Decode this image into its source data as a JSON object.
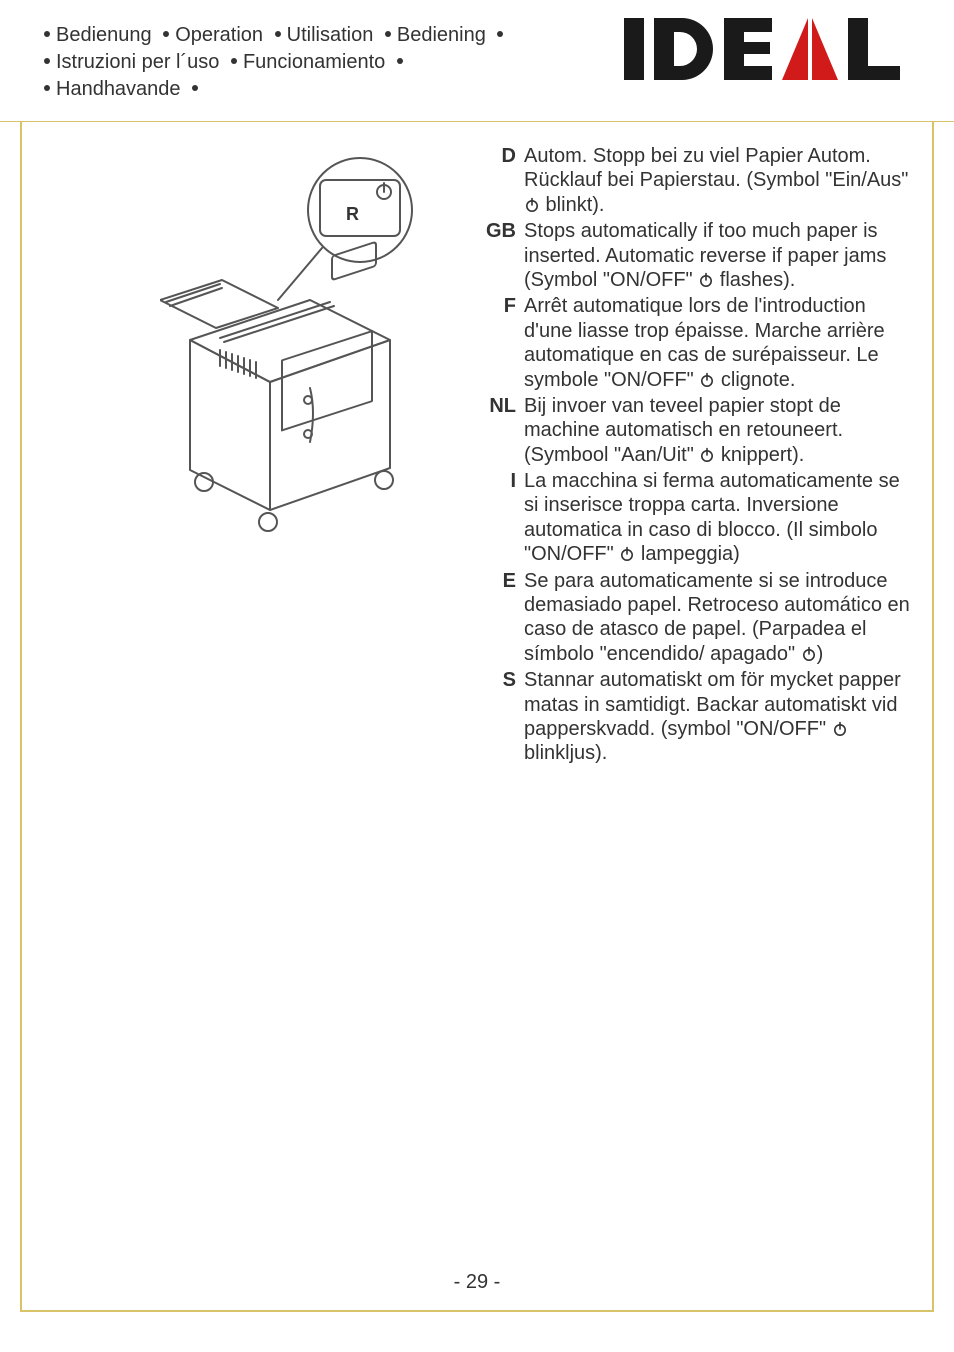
{
  "colors": {
    "text": "#333333",
    "rule": "#d9c36a",
    "logo_black": "#1a1a1a",
    "logo_red": "#d11a1a",
    "background": "#ffffff",
    "illustration_stroke": "#555555"
  },
  "header": {
    "line1_items": [
      "Bedienung",
      "Operation",
      "Utilisation",
      "Bediening"
    ],
    "line2_items": [
      "Istruzioni per l´uso",
      "Funcionamiento"
    ],
    "line3_items": [
      "Handhavande"
    ]
  },
  "logo": {
    "text": "IDEAL",
    "font_weight": 900
  },
  "illustration": {
    "button_label": "R"
  },
  "instructions": [
    {
      "code": "D",
      "text": "Autom. Stopp bei zu viel Papier Autom. Rücklauf bei Papierstau. (Symbol \"Ein/Aus\" ⏻ blinkt)."
    },
    {
      "code": "GB",
      "text": "Stops automatically if too much paper is inserted. Automatic reverse if paper jams (Symbol \"ON/OFF\" ⏻ flashes)."
    },
    {
      "code": "F",
      "text": "Arrêt automatique lors de l'introduction d'une liasse trop épaisse. Marche arrière automatique en cas de surépaisseur. Le symbole \"ON/OFF\" ⏻ clignote."
    },
    {
      "code": "NL",
      "text": "Bij invoer van teveel papier stopt de machine automatisch en retouneert. (Symbool \"Aan/Uit\" ⏻ knippert)."
    },
    {
      "code": "I",
      "text": "La macchina si ferma automaticamente se si inserisce troppa carta. Inversione automatica in caso di blocco. (Il simbolo \"ON/OFF\" ⏻ lampeggia)"
    },
    {
      "code": "E",
      "text": "Se para automaticamente si se introduce demasiado papel. Retroceso automático en caso de atasco de papel. (Parpadea el símbolo \"encendido/ apagado\" ⏻)"
    },
    {
      "code": "S",
      "text": "Stannar automatiskt om för mycket papper matas in samtidigt. Backar automatiskt vid papperskvadd. (symbol \"ON/OFF\" ⏻ blinkljus)."
    }
  ],
  "page_number": "- 29 -"
}
